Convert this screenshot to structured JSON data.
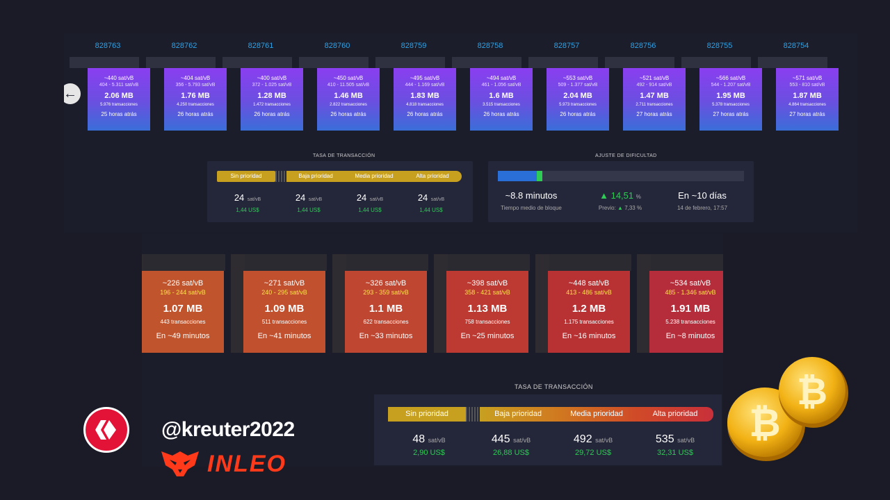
{
  "handle": "@kreuter2022",
  "brand": "INLEO",
  "colors": {
    "hive_red": "#e31337",
    "inleo_orange": "#ff3a1a",
    "block_num_blue": "#2ea2e6",
    "usd_green": "#2ecc55"
  },
  "top": {
    "blocks": [
      {
        "num": "828763",
        "fee": "~440 sat/vB",
        "range": "404 - 5.311 sat/vB",
        "size": "2.06 MB",
        "tx": "5.976 transacciones",
        "time": "25 horas atrás"
      },
      {
        "num": "828762",
        "fee": "~404 sat/vB",
        "range": "356 - 5.793 sat/vB",
        "size": "1.76 MB",
        "tx": "4.250 transacciones",
        "time": "26 horas atrás"
      },
      {
        "num": "828761",
        "fee": "~400 sat/vB",
        "range": "372 - 1.025 sat/vB",
        "size": "1.28 MB",
        "tx": "1.472 transacciones",
        "time": "26 horas atrás"
      },
      {
        "num": "828760",
        "fee": "~450 sat/vB",
        "range": "410 - 11.505 sat/vB",
        "size": "1.46 MB",
        "tx": "2.822 transacciones",
        "time": "26 horas atrás"
      },
      {
        "num": "828759",
        "fee": "~495 sat/vB",
        "range": "444 - 1.169 sat/vB",
        "size": "1.83 MB",
        "tx": "4.818 transacciones",
        "time": "26 horas atrás"
      },
      {
        "num": "828758",
        "fee": "~494 sat/vB",
        "range": "461 - 1.056 sat/vB",
        "size": "1.6 MB",
        "tx": "3.515 transacciones",
        "time": "26 horas atrás"
      },
      {
        "num": "828757",
        "fee": "~553 sat/vB",
        "range": "509 - 1.377 sat/vB",
        "size": "2.04 MB",
        "tx": "5.973 transacciones",
        "time": "26 horas atrás"
      },
      {
        "num": "828756",
        "fee": "~521 sat/vB",
        "range": "492 - 914 sat/vB",
        "size": "1.47 MB",
        "tx": "2.711 transacciones",
        "time": "27 horas atrás"
      },
      {
        "num": "828755",
        "fee": "~566 sat/vB",
        "range": "544 - 1.207 sat/vB",
        "size": "1.95 MB",
        "tx": "5.378 transacciones",
        "time": "27 horas atrás"
      },
      {
        "num": "828754",
        "fee": "~571 sat/vB",
        "range": "553 - 810 sat/vB",
        "size": "1.87 MB",
        "tx": "4.864 transacciones",
        "time": "27 horas atrás"
      }
    ],
    "fee_title": "TASA DE TRANSACCIÓN",
    "pills": [
      "Sin prioridad",
      "Baja prioridad",
      "Media prioridad",
      "Alta prioridad"
    ],
    "fees": [
      {
        "v": "24",
        "u": "sat/vB",
        "usd": "1,44 US$"
      },
      {
        "v": "24",
        "u": "sat/vB",
        "usd": "1,44 US$"
      },
      {
        "v": "24",
        "u": "sat/vB",
        "usd": "1,44 US$"
      },
      {
        "v": "24",
        "u": "sat/vB",
        "usd": "1,44 US$"
      }
    ],
    "diff_title": "AJUSTE DE DIFICULTAD",
    "diff_progress": 0.17,
    "diff": {
      "avg": "~8.8 minutos",
      "avg_label": "Tiempo medio de bloque",
      "pct": "14,51",
      "pct_unit": "%",
      "prev": "Previo:",
      "prev_val": "7,33 %",
      "eta": "En ~10 días",
      "eta_date": "14 de febrero, 17:57"
    }
  },
  "bottom": {
    "blocks": [
      {
        "fee": "~226 sat/vB",
        "range": "196 - 244 sat/vB",
        "size": "1.07 MB",
        "tx": "443 transacciones",
        "time": "En ~49 minutos",
        "color": "#c0542c"
      },
      {
        "fee": "~271 sat/vB",
        "range": "240 - 295 sat/vB",
        "size": "1.09 MB",
        "tx": "511 transacciones",
        "time": "En ~41 minutos",
        "color": "#c0502e"
      },
      {
        "fee": "~326 sat/vB",
        "range": "293 - 359 sat/vB",
        "size": "1.1 MB",
        "tx": "622 transacciones",
        "time": "En ~33 minutos",
        "color": "#bf4630"
      },
      {
        "fee": "~398 sat/vB",
        "range": "358 - 421 sat/vB",
        "size": "1.13 MB",
        "tx": "758 transacciones",
        "time": "En ~25 minutos",
        "color": "#bc3a32"
      },
      {
        "fee": "~448 sat/vB",
        "range": "413 - 486 sat/vB",
        "size": "1.2 MB",
        "tx": "1.175 transacciones",
        "time": "En ~16 minutos",
        "color": "#b83234"
      },
      {
        "fee": "~534 sat/vB",
        "range": "485 - 1.346 sat/vB",
        "size": "1.91 MB",
        "tx": "5.238 transacciones",
        "time": "En ~8 minutos",
        "color": "#b52d3a"
      }
    ],
    "fee_title": "TASA DE TRANSACCIÓN",
    "pills": [
      "Sin prioridad",
      "Baja prioridad",
      "Media prioridad",
      "Alta prioridad"
    ],
    "fees": [
      {
        "v": "48",
        "u": "sat/vB",
        "usd": "2,90 US$"
      },
      {
        "v": "445",
        "u": "sat/vB",
        "usd": "26,88 US$"
      },
      {
        "v": "492",
        "u": "sat/vB",
        "usd": "29,72 US$"
      },
      {
        "v": "535",
        "u": "sat/vB",
        "usd": "32,31 US$"
      }
    ]
  }
}
